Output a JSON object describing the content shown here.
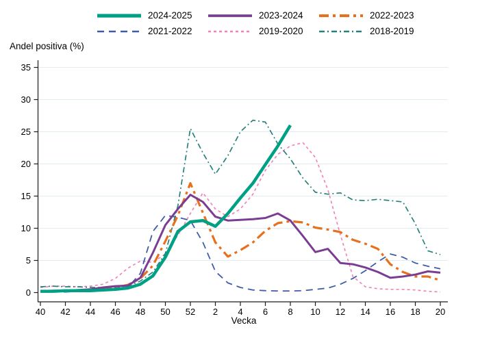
{
  "figure": {
    "ylabel_title": "Andel positiva (%)",
    "xlabel_title": "Vecka"
  },
  "chart_data": {
    "type": "line",
    "title": "",
    "xlabel": "Vecka",
    "ylabel": "Andel positiva (%)",
    "grid": true,
    "legend_position": "top",
    "ylim": [
      0,
      35
    ],
    "yticks": [
      0,
      5,
      10,
      15,
      20,
      25,
      30,
      35
    ],
    "x_weeks": [
      40,
      41,
      42,
      43,
      44,
      45,
      46,
      47,
      48,
      49,
      50,
      51,
      52,
      1,
      2,
      3,
      4,
      5,
      6,
      7,
      8,
      9,
      10,
      11,
      12,
      13,
      14,
      15,
      16,
      17,
      18,
      19,
      20
    ],
    "x_tick_labels": [
      "40",
      "42",
      "44",
      "46",
      "48",
      "50",
      "52",
      "2",
      "4",
      "6",
      "8",
      "10",
      "12",
      "14",
      "16",
      "18",
      "20"
    ],
    "grid_color": "#e0ebf2",
    "axis_color": "#1a1a1a",
    "series": [
      {
        "name": "2024-2025",
        "color": "#00a085",
        "dash": "",
        "width": 4.5,
        "values": [
          0.2,
          0.2,
          0.3,
          0.3,
          0.3,
          0.4,
          0.5,
          0.7,
          1.3,
          2.6,
          5.5,
          9.5,
          11.0,
          11.2,
          10.3,
          12.3,
          14.7,
          17.0,
          19.9,
          22.8,
          26.0
        ]
      },
      {
        "name": "2023-2024",
        "color": "#7b3d94",
        "dash": "",
        "width": 3,
        "values": [
          0.2,
          0.3,
          0.3,
          0.4,
          0.5,
          0.8,
          1.0,
          1.1,
          2.3,
          6.2,
          10.5,
          13.0,
          15.2,
          14.1,
          11.8,
          11.2,
          11.3,
          11.4,
          11.6,
          12.3,
          11.2,
          8.8,
          6.3,
          6.8,
          4.6,
          4.4,
          3.9,
          3.2,
          2.3,
          2.5,
          2.8,
          3.3,
          3.1
        ]
      },
      {
        "name": "2022-2023",
        "color": "#e7701d",
        "dash": "14 6 4 6",
        "width": 3.2,
        "values": [
          0.2,
          0.2,
          0.3,
          0.3,
          0.4,
          0.6,
          0.8,
          1.2,
          2.2,
          4.2,
          8.0,
          12.0,
          17.0,
          12.4,
          7.8,
          5.6,
          6.6,
          7.8,
          9.6,
          10.8,
          11.1,
          10.9,
          10.1,
          9.8,
          9.4,
          8.2,
          7.6,
          6.8,
          4.4,
          3.2,
          2.5,
          2.5,
          1.9
        ]
      },
      {
        "name": "2021-2022",
        "color": "#3f5ca9",
        "dash": "10 7",
        "width": 1.8,
        "values": [
          0.1,
          0.1,
          0.1,
          0.2,
          0.2,
          0.3,
          0.4,
          0.8,
          3.0,
          9.5,
          12.0,
          11.7,
          11.2,
          7.8,
          3.3,
          1.5,
          0.8,
          0.4,
          0.3,
          0.25,
          0.25,
          0.3,
          0.5,
          0.7,
          1.3,
          2.2,
          3.4,
          4.8,
          6.0,
          5.5,
          4.6,
          4.1,
          3.7
        ]
      },
      {
        "name": "2019-2020",
        "color": "#f283b8",
        "dash": "4 4",
        "width": 1.7,
        "values": [
          0.8,
          1.0,
          1.0,
          0.9,
          1.0,
          1.3,
          2.2,
          3.8,
          4.9,
          4.7,
          6.0,
          8.9,
          12.3,
          15.5,
          13.0,
          11.8,
          13.0,
          15.3,
          19.0,
          21.5,
          22.8,
          23.3,
          21.0,
          16.0,
          9.0,
          2.5,
          0.9,
          0.6,
          0.5,
          0.5,
          0.4,
          0.2,
          0.1
        ]
      },
      {
        "name": "2018-2019",
        "color": "#26817a",
        "dash": "8 4 2 4",
        "width": 1.7,
        "values": [
          0.9,
          1.0,
          0.9,
          0.9,
          0.8,
          0.8,
          0.8,
          1.0,
          1.8,
          3.2,
          6.1,
          13.5,
          25.5,
          21.7,
          18.4,
          21.3,
          25.0,
          26.8,
          26.5,
          23.1,
          20.8,
          17.8,
          15.6,
          15.3,
          15.5,
          14.4,
          14.3,
          14.5,
          14.3,
          14.1,
          10.7,
          6.5,
          5.9
        ]
      }
    ]
  }
}
